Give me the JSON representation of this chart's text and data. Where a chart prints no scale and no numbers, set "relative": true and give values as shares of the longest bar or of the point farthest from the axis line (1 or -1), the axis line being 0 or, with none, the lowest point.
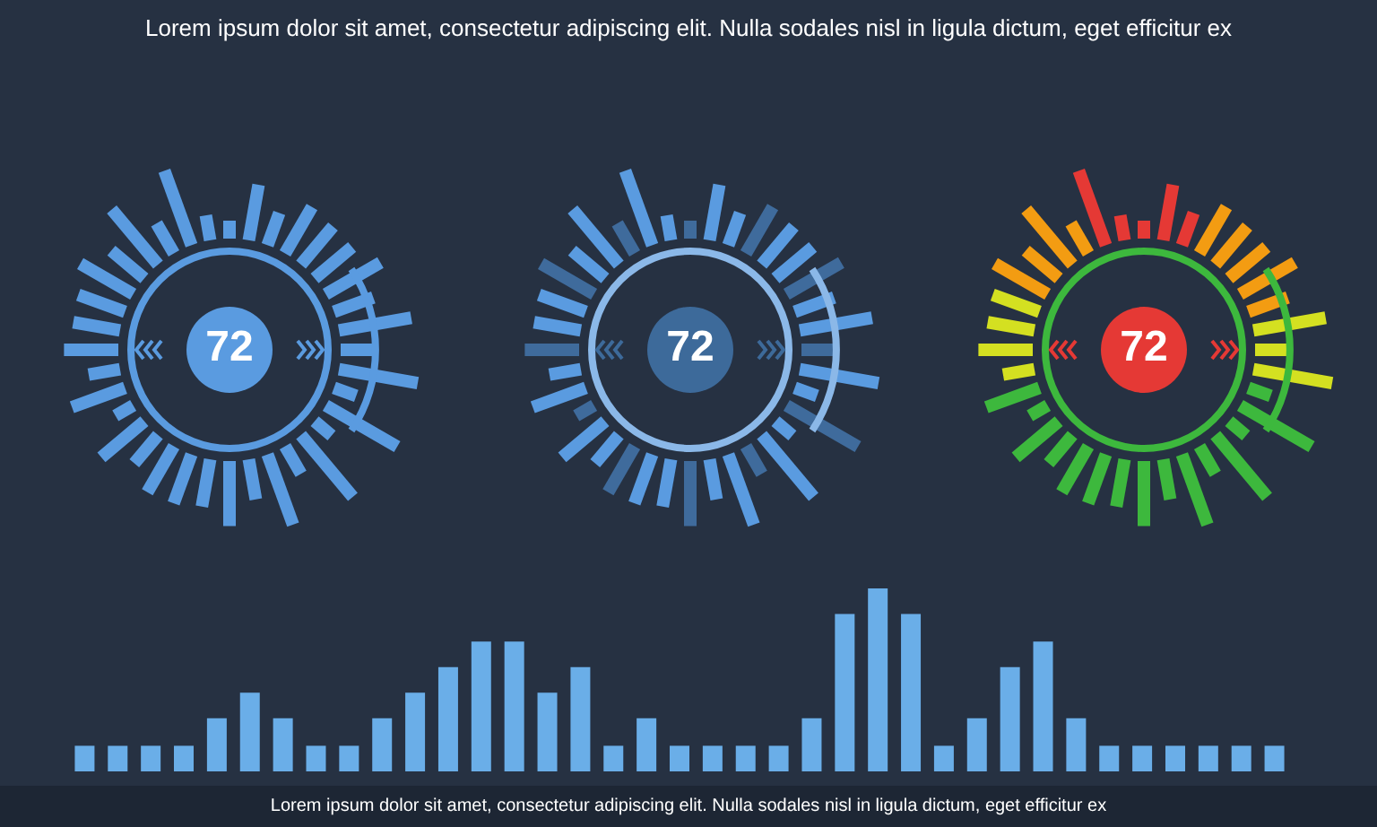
{
  "chart_data": [
    {
      "type": "other",
      "title": "Lorem ipsum dolor sit amet, consectetur adipiscing elit. Nulla sodales nisl in ligula dictum, eget efficitur ex",
      "annotations": [
        "72",
        "72",
        "72"
      ]
    },
    {
      "type": "bar",
      "relative": true,
      "color": "#6aaee8",
      "categories": [
        null,
        null,
        null,
        null,
        null,
        null,
        null,
        null,
        null,
        null,
        null,
        null,
        null,
        null,
        null,
        null,
        null,
        null,
        null,
        null,
        null,
        null,
        null,
        null,
        null,
        null,
        null,
        null,
        null,
        null,
        null,
        null,
        null,
        null,
        null,
        null,
        null
      ],
      "values": [
        0.14,
        0.14,
        0.14,
        0.14,
        0.29,
        0.43,
        0.29,
        0.14,
        0.14,
        0.29,
        0.43,
        0.57,
        0.71,
        0.71,
        0.43,
        0.57,
        0.14,
        0.29,
        0.14,
        0.14,
        0.14,
        0.14,
        0.29,
        0.86,
        1,
        0.86,
        0.14,
        0.29,
        0.57,
        0.71,
        0.29,
        0.14,
        0.14,
        0.14,
        0.14,
        0.14,
        0.14
      ],
      "annotations": [
        "Lorem ipsum dolor sit amet, consectetur adipiscing elit. Nulla sodales nisl in ligula dictum, eget efficitur ex"
      ]
    }
  ]
}
